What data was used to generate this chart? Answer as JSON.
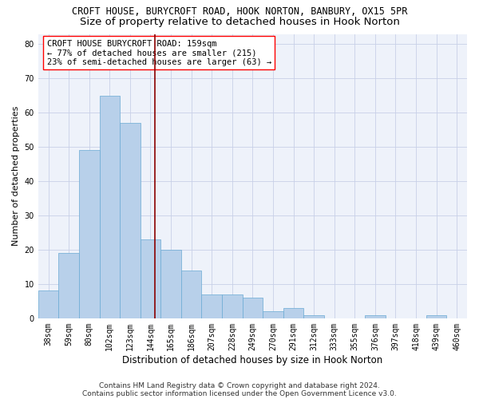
{
  "title1": "CROFT HOUSE, BURYCROFT ROAD, HOOK NORTON, BANBURY, OX15 5PR",
  "title2": "Size of property relative to detached houses in Hook Norton",
  "xlabel": "Distribution of detached houses by size in Hook Norton",
  "ylabel": "Number of detached properties",
  "categories": [
    "38sqm",
    "59sqm",
    "80sqm",
    "102sqm",
    "123sqm",
    "144sqm",
    "165sqm",
    "186sqm",
    "207sqm",
    "228sqm",
    "249sqm",
    "270sqm",
    "291sqm",
    "312sqm",
    "333sqm",
    "355sqm",
    "376sqm",
    "397sqm",
    "418sqm",
    "439sqm",
    "460sqm"
  ],
  "values": [
    8,
    19,
    49,
    65,
    57,
    23,
    20,
    14,
    7,
    7,
    6,
    2,
    3,
    1,
    0,
    0,
    1,
    0,
    0,
    1,
    0
  ],
  "bar_color": "#b8d0ea",
  "bar_edge_color": "#6aaad4",
  "vline_color": "#8b0000",
  "annotation_box_text": "CROFT HOUSE BURYCROFT ROAD: 159sqm\n← 77% of detached houses are smaller (215)\n23% of semi-detached houses are larger (63) →",
  "ylim": [
    0,
    83
  ],
  "yticks": [
    0,
    10,
    20,
    30,
    40,
    50,
    60,
    70,
    80
  ],
  "footnote1": "Contains HM Land Registry data © Crown copyright and database right 2024.",
  "footnote2": "Contains public sector information licensed under the Open Government Licence v3.0.",
  "bg_color": "#eef2fa",
  "grid_color": "#c8d0e8",
  "title1_fontsize": 8.5,
  "title2_fontsize": 9.5,
  "axis_label_fontsize": 8.5,
  "tick_fontsize": 7,
  "annotation_fontsize": 7.5,
  "ylabel_fontsize": 8
}
